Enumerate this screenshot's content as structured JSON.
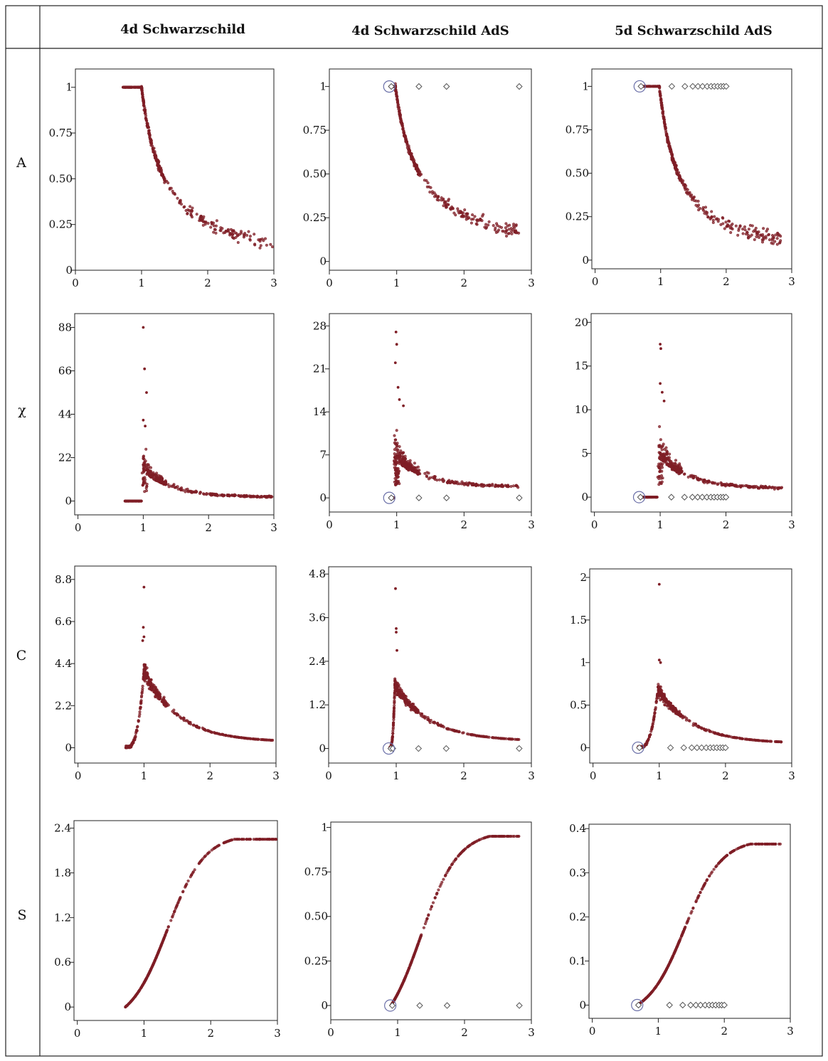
{
  "figure": {
    "column_headers": [
      "4d Schwarzschild",
      "4d Schwarzschild AdS",
      "5d Schwarzschild AdS"
    ],
    "row_labels": [
      "A",
      "χ",
      "C",
      "S"
    ],
    "colors": {
      "data": "#7f1d25",
      "open_marker": "#555555",
      "circle": "#6a6fa8",
      "frame": "#222222"
    }
  },
  "chart_data": [
    {
      "id": "A-4dS",
      "type": "scatter",
      "row": "A",
      "column": "4d Schwarzschild",
      "xlabel": "",
      "ylabel": "A",
      "xlim": [
        0,
        3
      ],
      "ylim": [
        0,
        1.1
      ],
      "xticks": [
        0,
        1,
        2,
        3
      ],
      "xtick_labels": [
        "0",
        "1",
        "2",
        "3"
      ],
      "yticks": [
        0,
        0.25,
        0.5,
        0.75,
        1
      ],
      "ytick_labels": [
        "0",
        "0.25",
        "0.50",
        "0.75",
        "1"
      ],
      "curve_kind": "A",
      "x_start": 0.72,
      "x_end": 2.98,
      "transition_x": 1.0,
      "end_value": 0.15,
      "annotations": []
    },
    {
      "id": "A-4dAdS",
      "type": "scatter",
      "row": "A",
      "column": "4d Schwarzschild AdS",
      "xlabel": "",
      "ylabel": "A",
      "xlim": [
        0,
        3
      ],
      "ylim": [
        -0.05,
        1.1
      ],
      "xticks": [
        0,
        1,
        2,
        3
      ],
      "xtick_labels": [
        "0",
        "1",
        "2",
        "3"
      ],
      "yticks": [
        0,
        0.25,
        0.5,
        0.75,
        1
      ],
      "ytick_labels": [
        "0",
        "0.25",
        "0.50",
        "0.75",
        "1"
      ],
      "curve_kind": "A",
      "x_start": 0.9,
      "x_end": 2.82,
      "transition_x": 0.98,
      "end_value": 0.17,
      "open_markers": {
        "x": [
          0.92,
          1.33,
          1.74,
          2.82
        ],
        "y": [
          1,
          1,
          1,
          1
        ]
      },
      "circle_marker": {
        "x": 0.89,
        "y": 1
      }
    },
    {
      "id": "A-5dAdS",
      "type": "scatter",
      "row": "A",
      "column": "5d Schwarzschild AdS",
      "xlabel": "",
      "ylabel": "A",
      "xlim": [
        -0.05,
        3
      ],
      "ylim": [
        -0.05,
        1.1
      ],
      "xticks": [
        0,
        1,
        2,
        3
      ],
      "xtick_labels": [
        "0",
        "1",
        "2",
        "3"
      ],
      "yticks": [
        0,
        0.25,
        0.5,
        0.75,
        1
      ],
      "ytick_labels": [
        "0",
        "0.25",
        "0.50",
        "0.75",
        "1"
      ],
      "curve_kind": "A",
      "x_start": 0.68,
      "x_end": 2.85,
      "transition_x": 0.98,
      "end_value": 0.12,
      "open_markers": {
        "x": [
          0.7,
          1.17,
          1.37,
          1.49,
          1.57,
          1.64,
          1.71,
          1.77,
          1.82,
          1.87,
          1.92,
          1.96,
          2.0
        ],
        "y": [
          1,
          1,
          1,
          1,
          1,
          1,
          1,
          1,
          1,
          1,
          1,
          1,
          1
        ]
      },
      "circle_marker": {
        "x": 0.68,
        "y": 1
      }
    },
    {
      "id": "chi-4dS",
      "type": "scatter",
      "row": "χ",
      "column": "4d Schwarzschild",
      "xlabel": "",
      "ylabel": "χ",
      "xlim": [
        -0.05,
        3
      ],
      "ylim": [
        -7,
        95
      ],
      "xticks": [
        0,
        1,
        2,
        3
      ],
      "xtick_labels": [
        "0",
        "1",
        "2",
        "3"
      ],
      "yticks": [
        0,
        22,
        44,
        66,
        88
      ],
      "ytick_labels": [
        "0",
        "22",
        "44",
        "66",
        "88"
      ],
      "curve_kind": "chi",
      "x_start": 0.72,
      "x_end": 2.98,
      "transition_x": 1.0,
      "peak_value": 15,
      "end_value": 2,
      "outliers": {
        "x": [
          1.0,
          1.02,
          1.05,
          1.0,
          1.03
        ],
        "y": [
          88,
          67,
          55,
          41,
          38
        ]
      }
    },
    {
      "id": "chi-4dAdS",
      "type": "scatter",
      "row": "χ",
      "column": "4d Schwarzschild AdS",
      "xlabel": "",
      "ylabel": "χ",
      "xlim": [
        0,
        3
      ],
      "ylim": [
        -2.3,
        30
      ],
      "xticks": [
        0,
        1,
        2,
        3
      ],
      "xtick_labels": [
        "0",
        "1",
        "2",
        "3"
      ],
      "yticks": [
        0,
        7,
        14,
        21,
        28
      ],
      "ytick_labels": [
        "0",
        "7",
        "14",
        "21",
        "28"
      ],
      "curve_kind": "chi",
      "x_start": 0.9,
      "x_end": 2.82,
      "transition_x": 0.98,
      "peak_value": 6,
      "end_value": 1.8,
      "outliers": {
        "x": [
          0.99,
          1.0,
          0.98,
          1.02,
          1.04,
          1.1
        ],
        "y": [
          27,
          25,
          22,
          18,
          16,
          15
        ]
      },
      "open_markers": {
        "x": [
          0.92,
          1.33,
          1.74,
          2.82
        ],
        "y": [
          0,
          0,
          0,
          0
        ]
      },
      "circle_marker": {
        "x": 0.89,
        "y": 0
      }
    },
    {
      "id": "chi-5dAdS",
      "type": "scatter",
      "row": "χ",
      "column": "5d Schwarzschild AdS",
      "xlabel": "",
      "ylabel": "χ",
      "xlim": [
        -0.05,
        3
      ],
      "ylim": [
        -1.7,
        21
      ],
      "xticks": [
        0,
        1,
        2,
        3
      ],
      "xtick_labels": [
        "0",
        "1",
        "2",
        "3"
      ],
      "yticks": [
        0,
        5,
        10,
        15,
        20
      ],
      "ytick_labels": [
        "0",
        "5",
        "10",
        "15",
        "20"
      ],
      "curve_kind": "chi",
      "x_start": 0.68,
      "x_end": 2.85,
      "transition_x": 0.98,
      "peak_value": 4.5,
      "end_value": 1,
      "outliers": {
        "x": [
          1.0,
          1.01,
          1.0,
          1.03,
          1.06
        ],
        "y": [
          17.5,
          17,
          13,
          12,
          11
        ]
      },
      "open_markers": {
        "x": [
          0.7,
          1.17,
          1.37,
          1.49,
          1.57,
          1.64,
          1.71,
          1.77,
          1.82,
          1.87,
          1.92,
          1.96,
          2.0
        ],
        "y": [
          0,
          0,
          0,
          0,
          0,
          0,
          0,
          0,
          0,
          0,
          0,
          0,
          0
        ]
      },
      "circle_marker": {
        "x": 0.68,
        "y": 0
      }
    },
    {
      "id": "C-4dS",
      "type": "scatter",
      "row": "C",
      "column": "4d Schwarzschild",
      "xlabel": "",
      "ylabel": "C",
      "xlim": [
        -0.05,
        3
      ],
      "ylim": [
        -0.8,
        9.5
      ],
      "xticks": [
        0,
        1,
        2,
        3
      ],
      "xtick_labels": [
        "0",
        "1",
        "2",
        "3"
      ],
      "yticks": [
        0,
        2.2,
        4.4,
        6.6,
        8.8
      ],
      "ytick_labels": [
        "0",
        "2.2",
        "4.4",
        "6.6",
        "8.8"
      ],
      "curve_kind": "C",
      "x_start": 0.72,
      "x_end": 2.98,
      "transition_x": 1.0,
      "peak_value": 4.0,
      "end_value": 0.3,
      "outliers": {
        "x": [
          1.0,
          0.99,
          1.0,
          0.98
        ],
        "y": [
          8.4,
          6.3,
          5.8,
          5.6
        ]
      }
    },
    {
      "id": "C-4dAdS",
      "type": "scatter",
      "row": "C",
      "column": "4d Schwarzschild AdS",
      "xlabel": "",
      "ylabel": "C",
      "xlim": [
        0,
        3
      ],
      "ylim": [
        -0.4,
        5.0
      ],
      "xticks": [
        0,
        1,
        2,
        3
      ],
      "xtick_labels": [
        "0",
        "1",
        "2",
        "3"
      ],
      "yticks": [
        0,
        1.2,
        2.4,
        3.6,
        4.8
      ],
      "ytick_labels": [
        "0",
        "1.2",
        "2.4",
        "3.6",
        "4.8"
      ],
      "curve_kind": "C",
      "x_start": 0.9,
      "x_end": 2.82,
      "transition_x": 0.98,
      "peak_value": 1.75,
      "end_value": 0.2,
      "outliers": {
        "x": [
          0.99,
          1.0,
          1.0,
          1.01
        ],
        "y": [
          4.4,
          3.3,
          3.2,
          2.7
        ]
      },
      "open_markers": {
        "x": [
          0.92,
          0.95,
          1.33,
          1.74,
          2.82
        ],
        "y": [
          0,
          0,
          0,
          0,
          0
        ]
      },
      "circle_marker": {
        "x": 0.89,
        "y": 0
      }
    },
    {
      "id": "C-5dAdS",
      "type": "scatter",
      "row": "C",
      "column": "5d Schwarzschild AdS",
      "xlabel": "",
      "ylabel": "C",
      "xlim": [
        -0.05,
        3
      ],
      "ylim": [
        -0.18,
        2.1
      ],
      "xticks": [
        0,
        1,
        2,
        3
      ],
      "xtick_labels": [
        "0",
        "1",
        "2",
        "3"
      ],
      "yticks": [
        0,
        0.5,
        1,
        1.5,
        2
      ],
      "ytick_labels": [
        "0",
        "0.5",
        "1",
        "1.5",
        "2"
      ],
      "curve_kind": "C",
      "x_start": 0.68,
      "x_end": 2.85,
      "transition_x": 0.98,
      "peak_value": 0.68,
      "end_value": 0.05,
      "outliers": {
        "x": [
          1.0,
          1.0,
          1.02
        ],
        "y": [
          1.92,
          1.03,
          1.0
        ]
      },
      "open_markers": {
        "x": [
          0.7,
          1.17,
          1.37,
          1.49,
          1.57,
          1.64,
          1.71,
          1.77,
          1.82,
          1.87,
          1.92,
          1.96,
          2.0
        ],
        "y": [
          0,
          0,
          0,
          0,
          0,
          0,
          0,
          0,
          0,
          0,
          0,
          0,
          0
        ]
      },
      "circle_marker": {
        "x": 0.68,
        "y": 0
      }
    },
    {
      "id": "S-4dS",
      "type": "scatter",
      "row": "S",
      "column": "4d Schwarzschild",
      "xlabel": "",
      "ylabel": "S",
      "xlim": [
        -0.05,
        3.0
      ],
      "ylim": [
        -0.18,
        2.5
      ],
      "xticks": [
        0,
        1,
        2,
        3
      ],
      "xtick_labels": [
        "0",
        "1",
        "2",
        "3"
      ],
      "yticks": [
        0,
        0.6,
        1.2,
        1.8,
        2.4
      ],
      "ytick_labels": [
        "0",
        "0.6",
        "1.2",
        "1.8",
        "2.4"
      ],
      "curve_kind": "S",
      "x_start": 0.72,
      "x_end": 2.98,
      "transition_x": 1.0,
      "end_value": 2.25
    },
    {
      "id": "S-4dAdS",
      "type": "scatter",
      "row": "S",
      "column": "4d Schwarzschild AdS",
      "xlabel": "",
      "ylabel": "S",
      "xlim": [
        0,
        3
      ],
      "ylim": [
        -0.08,
        1.03
      ],
      "xticks": [
        0,
        1,
        2,
        3
      ],
      "xtick_labels": [
        "0",
        "1",
        "2",
        "3"
      ],
      "yticks": [
        0,
        0.25,
        0.5,
        0.75,
        1
      ],
      "ytick_labels": [
        "0",
        "0.25",
        "0.50",
        "0.75",
        "1"
      ],
      "curve_kind": "S",
      "x_start": 0.9,
      "x_end": 2.82,
      "transition_x": 1.0,
      "end_value": 0.95,
      "open_markers": {
        "x": [
          0.92,
          1.33,
          1.74,
          2.82
        ],
        "y": [
          0,
          0,
          0,
          0
        ]
      },
      "circle_marker": {
        "x": 0.89,
        "y": 0
      }
    },
    {
      "id": "S-5dAdS",
      "type": "scatter",
      "row": "S",
      "column": "5d Schwarzschild AdS",
      "xlabel": "",
      "ylabel": "S",
      "xlim": [
        -0.05,
        3
      ],
      "ylim": [
        -0.03,
        0.41
      ],
      "xticks": [
        0,
        1,
        2,
        3
      ],
      "xtick_labels": [
        "0",
        "1",
        "2",
        "3"
      ],
      "yticks": [
        0,
        0.1,
        0.2,
        0.3,
        0.4
      ],
      "ytick_labels": [
        "0",
        "0.1",
        "0.2",
        "0.3",
        "0.4"
      ],
      "curve_kind": "S",
      "x_start": 0.68,
      "x_end": 2.85,
      "transition_x": 1.05,
      "end_value": 0.365,
      "open_markers": {
        "x": [
          0.7,
          1.17,
          1.37,
          1.49,
          1.57,
          1.64,
          1.71,
          1.77,
          1.82,
          1.87,
          1.92,
          1.96,
          2.0
        ],
        "y": [
          0,
          0,
          0,
          0,
          0,
          0,
          0,
          0,
          0,
          0,
          0,
          0,
          0
        ]
      },
      "circle_marker": {
        "x": 0.68,
        "y": 0
      }
    }
  ]
}
